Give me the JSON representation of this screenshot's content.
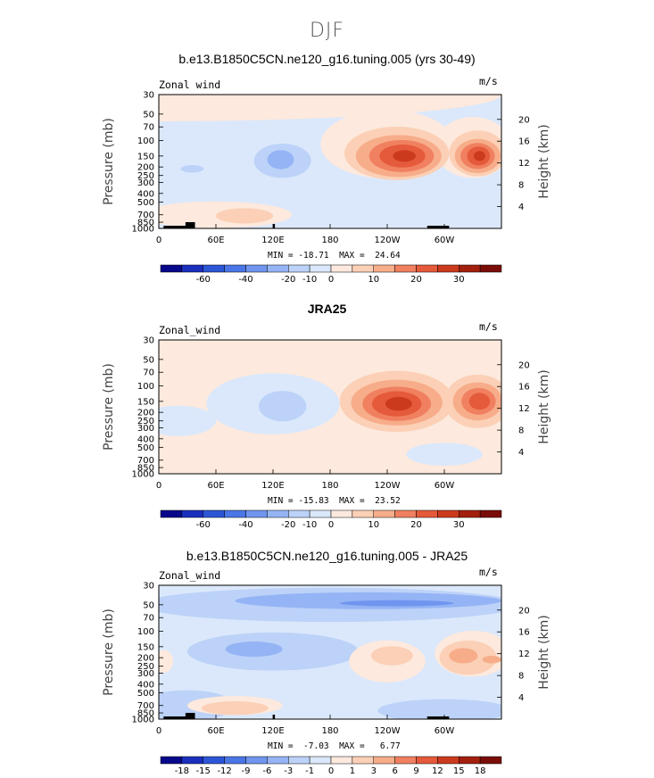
{
  "page": {
    "title": "DJF"
  },
  "palette": [
    "#08088a",
    "#1a2fbd",
    "#2c56d6",
    "#4a76e6",
    "#6f95ef",
    "#95b4f5",
    "#bcd2f8",
    "#dbe8fb",
    "#fde9dd",
    "#fbd0b6",
    "#f7ad8a",
    "#f08060",
    "#e45a3a",
    "#cc3a1e",
    "#a3200e",
    "#7a0d08"
  ],
  "panels": [
    {
      "title": "b.e13.B1850C5CN.ne120_g16.tuning.005 (yrs 30-49)",
      "variable": "Zonal wind",
      "units": "m/s",
      "minmax": "MIN = -18.71  MAX =  24.64",
      "colorbar": {
        "labels": [
          "-60",
          "-40",
          "-20",
          "-10",
          "0",
          "10",
          "20",
          "30"
        ]
      }
    },
    {
      "title": "JRA25",
      "variable": "Zonal_wind",
      "units": "m/s",
      "minmax": "MIN = -15.83  MAX =  23.52",
      "colorbar": {
        "labels": [
          "-60",
          "-40",
          "-20",
          "-10",
          "0",
          "10",
          "20",
          "30"
        ]
      }
    },
    {
      "title": "b.e13.B1850C5CN.ne120_g16.tuning.005 - JRA25",
      "variable": "Zonal_wind",
      "units": "m/s",
      "minmax": "MIN =  -7.03  MAX =   6.77",
      "colorbar": {
        "labels": [
          "-18",
          "-15",
          "-12",
          "-9",
          "-6",
          "-3",
          "-1",
          "0",
          "1",
          "3",
          "6",
          "9",
          "12",
          "15",
          "18"
        ]
      }
    }
  ],
  "chart_data": [
    {
      "type": "heatmap",
      "title": "b.e13.B1850C5CN.ne120_g16.tuning.005 (yrs 30-49)",
      "subtitle": "DJF",
      "ylabel": "Pressure (mb)",
      "y2label": "Height (km)",
      "x_ticks": [
        "0",
        "60E",
        "120E",
        "180",
        "120W",
        "60W"
      ],
      "x_tick_lon": [
        0,
        60,
        120,
        180,
        240,
        300
      ],
      "xlim": [
        0,
        360
      ],
      "y_ticks": [
        "30",
        "50",
        "70",
        "100",
        "150",
        "200",
        "250",
        "300",
        "400",
        "500",
        "700",
        "850",
        "1000"
      ],
      "y_ticks2": [
        "20",
        "16",
        "12",
        "8",
        "4"
      ],
      "ylim_mb": [
        1000,
        30
      ],
      "min": -18.71,
      "max": 24.64,
      "units": "m/s",
      "features": [
        {
          "lon": 255,
          "p": 150,
          "value": 24.6
        },
        {
          "lon": 335,
          "p": 150,
          "value": 22
        },
        {
          "lon": 130,
          "p": 170,
          "value": -18.7
        }
      ]
    },
    {
      "type": "heatmap",
      "title": "JRA25",
      "ylabel": "Pressure (mb)",
      "y2label": "Height (km)",
      "x_ticks": [
        "0",
        "60E",
        "120E",
        "180",
        "120W",
        "60W"
      ],
      "y_ticks": [
        "30",
        "50",
        "70",
        "100",
        "150",
        "200",
        "250",
        "300",
        "400",
        "500",
        "700",
        "850",
        "1000"
      ],
      "y_ticks2": [
        "20",
        "16",
        "12",
        "8",
        "4"
      ],
      "min": -15.83,
      "max": 23.52,
      "units": "m/s",
      "features": [
        {
          "lon": 250,
          "p": 160,
          "value": 23.5
        },
        {
          "lon": 335,
          "p": 150,
          "value": 18
        },
        {
          "lon": 130,
          "p": 170,
          "value": -15.8
        }
      ]
    },
    {
      "type": "heatmap",
      "title": "b.e13.B1850C5CN.ne120_g16.tuning.005 - JRA25",
      "ylabel": "Pressure (mb)",
      "y2label": "Height (km)",
      "x_ticks": [
        "0",
        "60E",
        "120E",
        "180",
        "120W",
        "60W"
      ],
      "y_ticks": [
        "30",
        "50",
        "70",
        "100",
        "150",
        "200",
        "250",
        "300",
        "400",
        "500",
        "700",
        "850",
        "1000"
      ],
      "y_ticks2": [
        "20",
        "16",
        "12",
        "8",
        "4"
      ],
      "min": -7.03,
      "max": 6.77,
      "units": "m/s",
      "features": [
        {
          "lon": 240,
          "p": 50,
          "value": -7.0
        },
        {
          "lon": 320,
          "p": 200,
          "value": 6.8
        }
      ]
    }
  ]
}
